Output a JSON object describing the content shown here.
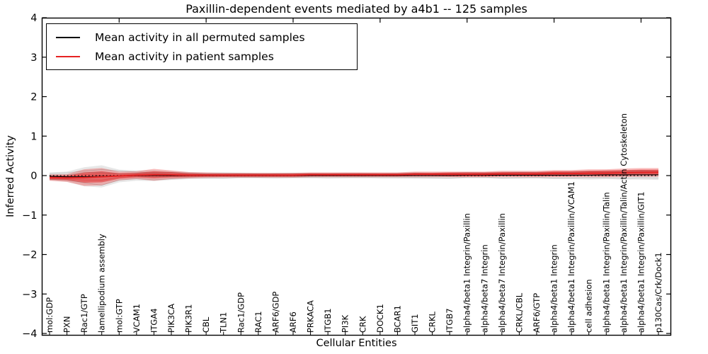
{
  "title": "Paxillin-dependent events mediated by a4b1 -- 125 samples",
  "chart_data": {
    "type": "line",
    "title": "Paxillin-dependent events mediated by a4b1 -- 125 samples",
    "xlabel": "Cellular Entities",
    "ylabel": "Inferred Activity",
    "ylim": [
      -4,
      4
    ],
    "ytick_values": [
      -4,
      -3,
      -2,
      -1,
      0,
      1,
      2,
      3,
      4
    ],
    "ytick_labels": [
      "−4",
      "−3",
      "−2",
      "−1",
      "0",
      "1",
      "2",
      "3",
      "4"
    ],
    "grid": false,
    "legend_position": "upper left",
    "zero_line": {
      "style": "dotted",
      "color": "#000000",
      "y": 0
    },
    "categories": [
      "mol:GDP",
      "PXN",
      "Rac1/GTP",
      "lamellipodium assembly",
      "mol:GTP",
      "VCAM1",
      "ITGA4",
      "PIK3CA",
      "PIK3R1",
      "CBL",
      "TLN1",
      "Rac1/GDP",
      "RAC1",
      "ARF6/GDP",
      "ARF6",
      "PRKACA",
      "ITGB1",
      "PI3K",
      "CRK",
      "DOCK1",
      "BCAR1",
      "GIT1",
      "CRKL",
      "ITGB7",
      "alpha4/beta1 Integrin/Paxillin",
      "alpha4/beta7 Integrin",
      "alpha4/beta7 Integrin/Paxillin",
      "CRKL/CBL",
      "ARF6/GTP",
      "alpha4/beta1 Integrin",
      "alpha4/beta1 Integrin/Paxillin/VCAM1",
      "cell adhesion",
      "alpha4/beta1 Integrin/Paxillin/Talin",
      "alpha4/beta1 Integrin/Paxillin/Talin/Actin Cytoskeleton",
      "alpha4/beta1 Integrin/Paxillin/GIT1",
      "p130Cas/Crk/Dock1"
    ],
    "legend_entries": [
      {
        "label": "Mean activity in all permuted samples",
        "color": "#000000"
      },
      {
        "label": "Mean activity in patient samples",
        "color": "#e62222"
      }
    ],
    "series": [
      {
        "name": "Mean activity in all permuted samples",
        "color": "#000000",
        "values": [
          -0.02,
          -0.03,
          -0.03,
          -0.02,
          -0.01,
          0,
          0,
          0,
          0,
          0,
          0,
          0,
          0,
          0,
          0,
          0,
          0,
          0,
          0,
          0,
          0,
          0,
          0,
          0,
          0.01,
          0.01,
          0.01,
          0.01,
          0.01,
          0.01,
          0.01,
          0.01,
          0.02,
          0.02,
          0.02,
          0.02
        ]
      },
      {
        "name": "Mean activity in patient samples",
        "color": "#e62222",
        "values": [
          -0.05,
          -0.06,
          -0.05,
          -0.03,
          -0.01,
          0.01,
          0.02,
          0.02,
          0.01,
          0.01,
          0.01,
          0.01,
          0.01,
          0.01,
          0.01,
          0.02,
          0.02,
          0.02,
          0.02,
          0.02,
          0.02,
          0.03,
          0.03,
          0.03,
          0.03,
          0.03,
          0.04,
          0.04,
          0.04,
          0.05,
          0.05,
          0.06,
          0.06,
          0.07,
          0.08,
          0.08
        ]
      }
    ],
    "bands": [
      {
        "name": "permuted-spread",
        "center_series": 0,
        "color": "rgba(110,110,110,0.17)",
        "half_widths": [
          0.1,
          0.13,
          0.24,
          0.28,
          0.16,
          0.13,
          0.14,
          0.11,
          0.09,
          0.08,
          0.08,
          0.07,
          0.07,
          0.07,
          0.07,
          0.07,
          0.07,
          0.07,
          0.07,
          0.07,
          0.07,
          0.08,
          0.08,
          0.08,
          0.08,
          0.08,
          0.09,
          0.09,
          0.09,
          0.1,
          0.1,
          0.11,
          0.11,
          0.12,
          0.12,
          0.13
        ]
      },
      {
        "name": "patient-spread-outer",
        "center_series": 1,
        "color": "rgba(235,35,35,0.30)",
        "half_widths": [
          0.08,
          0.1,
          0.21,
          0.22,
          0.11,
          0.1,
          0.15,
          0.11,
          0.08,
          0.07,
          0.06,
          0.06,
          0.06,
          0.06,
          0.06,
          0.06,
          0.06,
          0.06,
          0.06,
          0.06,
          0.06,
          0.07,
          0.07,
          0.07,
          0.07,
          0.07,
          0.08,
          0.08,
          0.08,
          0.09,
          0.09,
          0.1,
          0.1,
          0.11,
          0.11,
          0.11
        ]
      },
      {
        "name": "patient-spread-inner",
        "center_series": 1,
        "color": "rgba(225,15,15,0.45)",
        "half_widths": [
          0.05,
          0.06,
          0.13,
          0.14,
          0.07,
          0.06,
          0.09,
          0.07,
          0.05,
          0.04,
          0.04,
          0.04,
          0.04,
          0.04,
          0.04,
          0.04,
          0.04,
          0.04,
          0.04,
          0.04,
          0.04,
          0.04,
          0.04,
          0.05,
          0.05,
          0.05,
          0.05,
          0.05,
          0.05,
          0.06,
          0.06,
          0.06,
          0.07,
          0.07,
          0.07,
          0.07
        ]
      }
    ]
  }
}
